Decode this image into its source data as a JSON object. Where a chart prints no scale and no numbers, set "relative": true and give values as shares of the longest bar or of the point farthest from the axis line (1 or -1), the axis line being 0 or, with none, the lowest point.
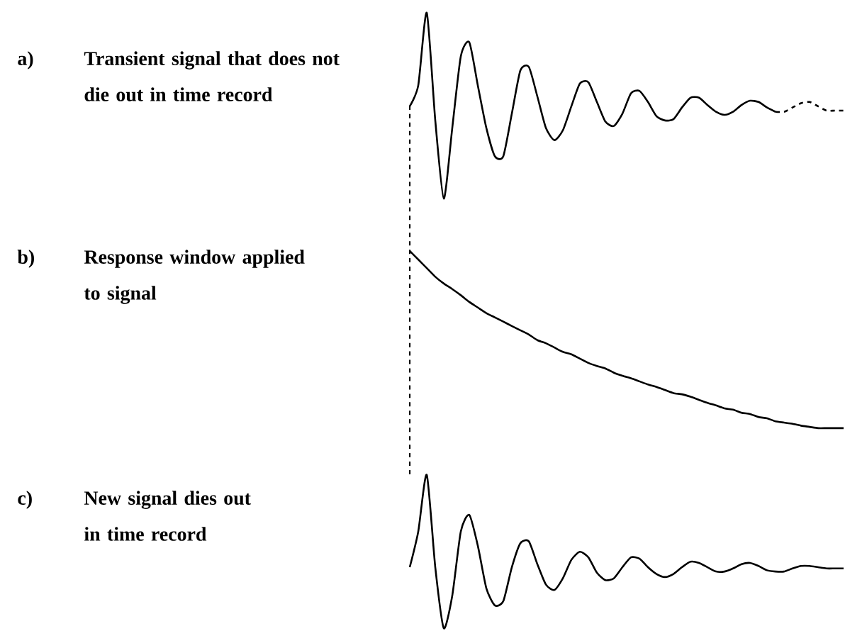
{
  "chart_data": {
    "type": "line",
    "relative": true,
    "categories": [
      null,
      null,
      null,
      null,
      null,
      null,
      null,
      null,
      null,
      null,
      null,
      null,
      null,
      null,
      null,
      null,
      null,
      null,
      null,
      null,
      null,
      null,
      null,
      null,
      null,
      null,
      null,
      null,
      null,
      null,
      null,
      null,
      null,
      null,
      null,
      null,
      null,
      null,
      null,
      null,
      null,
      null,
      null,
      null,
      null,
      null,
      null,
      null,
      null,
      null,
      null,
      null
    ],
    "series": [
      {
        "color": "#000000",
        "line_style": "solid",
        "values": [
          0.848,
          0.882,
          1.0,
          0.825,
          0.698,
          0.813,
          0.929,
          0.952,
          0.882,
          0.813,
          0.767,
          0.767,
          0.836,
          0.906,
          0.912,
          0.864,
          0.813,
          0.793,
          0.809,
          0.848,
          0.885,
          0.887,
          0.855,
          0.823,
          0.816,
          0.836,
          0.869,
          0.873,
          0.855,
          0.832,
          0.825,
          0.827,
          0.846,
          0.862,
          0.862,
          0.85,
          0.839,
          0.834,
          0.839,
          0.85,
          0.857,
          0.855,
          0.846,
          0.839,
          null,
          null,
          null,
          null,
          null,
          null,
          null,
          null
        ]
      },
      {
        "color": "#000000",
        "line_style": "dashed",
        "values": [
          null,
          null,
          null,
          null,
          null,
          null,
          null,
          null,
          null,
          null,
          null,
          null,
          null,
          null,
          null,
          null,
          null,
          null,
          null,
          null,
          null,
          null,
          null,
          null,
          null,
          null,
          null,
          null,
          null,
          null,
          null,
          null,
          null,
          null,
          null,
          null,
          null,
          null,
          null,
          null,
          null,
          null,
          null,
          0.839,
          0.839,
          0.846,
          0.853,
          0.855,
          0.848,
          0.841,
          0.841,
          0.841
        ]
      },
      {
        "color": "#000000",
        "line_style": "solid",
        "values": [
          0.613,
          0.599,
          0.585,
          0.571,
          0.56,
          0.551,
          0.541,
          0.53,
          0.521,
          0.512,
          0.505,
          0.498,
          0.491,
          0.484,
          0.477,
          0.468,
          0.463,
          0.456,
          0.449,
          0.445,
          0.438,
          0.431,
          0.426,
          0.422,
          0.415,
          0.41,
          0.406,
          0.401,
          0.396,
          0.392,
          0.387,
          0.382,
          0.38,
          0.376,
          0.371,
          0.366,
          0.362,
          0.357,
          0.355,
          0.35,
          0.348,
          0.343,
          0.341,
          0.336,
          0.334,
          0.332,
          0.329,
          0.327,
          0.325,
          0.325,
          0.325,
          0.325
        ]
      },
      {
        "color": "#000000",
        "line_style": "solid",
        "values": [
          0.099,
          0.157,
          0.249,
          0.099,
          0.0,
          0.053,
          0.157,
          0.184,
          0.134,
          0.065,
          0.037,
          0.044,
          0.099,
          0.138,
          0.141,
          0.104,
          0.071,
          0.062,
          0.081,
          0.111,
          0.124,
          0.115,
          0.09,
          0.078,
          0.081,
          0.099,
          0.115,
          0.113,
          0.099,
          0.088,
          0.083,
          0.088,
          0.099,
          0.108,
          0.106,
          0.099,
          0.092,
          0.092,
          0.097,
          0.104,
          0.106,
          0.101,
          0.094,
          0.092,
          0.092,
          0.097,
          0.101,
          0.101,
          0.099,
          0.097,
          0.097,
          0.097
        ]
      }
    ],
    "annotations": [
      "a)",
      "Transient signal that does not die out in time record",
      "b)",
      "Response window applied to signal",
      "c)",
      "New signal dies out in time record"
    ]
  }
}
